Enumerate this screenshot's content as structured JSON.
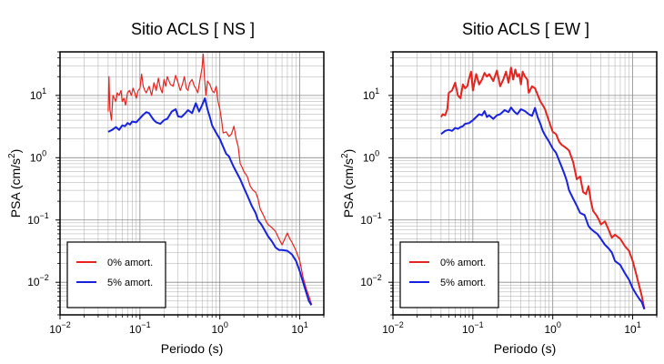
{
  "chart_data": [
    {
      "type": "line",
      "title": "Sitio ACLS [ NS ]",
      "xlabel": "Periodo (s)",
      "ylabel_main": "PSA (cm/s",
      "ylabel_sup": "2",
      "ylabel_end": ")",
      "xscale": "log",
      "yscale": "log",
      "xlim": [
        0.01,
        20
      ],
      "ylim": [
        0.003,
        50
      ],
      "grid": true,
      "legend_position": "bottom-left",
      "x_ticks": [
        {
          "base": "10",
          "exp": "−2",
          "value": 0.01
        },
        {
          "base": "10",
          "exp": "−1",
          "value": 0.1
        },
        {
          "base": "10",
          "exp": "0",
          "value": 1
        },
        {
          "base": "10",
          "exp": "1",
          "value": 10
        }
      ],
      "y_ticks": [
        {
          "base": "10",
          "exp": "−2",
          "value": 0.01
        },
        {
          "base": "10",
          "exp": "−1",
          "value": 0.1
        },
        {
          "base": "10",
          "exp": "0",
          "value": 1
        },
        {
          "base": "10",
          "exp": "1",
          "value": 10
        }
      ],
      "series": [
        {
          "name": "0% amort.",
          "color": "#e8231e",
          "width": 1.2,
          "x": [
            0.04,
            0.041,
            0.042,
            0.044,
            0.046,
            0.048,
            0.05,
            0.052,
            0.055,
            0.058,
            0.06,
            0.063,
            0.066,
            0.07,
            0.074,
            0.078,
            0.082,
            0.086,
            0.09,
            0.095,
            0.1,
            0.105,
            0.11,
            0.115,
            0.12,
            0.13,
            0.14,
            0.15,
            0.16,
            0.17,
            0.18,
            0.19,
            0.2,
            0.21,
            0.22,
            0.24,
            0.26,
            0.28,
            0.3,
            0.32,
            0.34,
            0.36,
            0.38,
            0.4,
            0.42,
            0.45,
            0.48,
            0.5,
            0.53,
            0.56,
            0.6,
            0.62,
            0.64,
            0.67,
            0.7,
            0.75,
            0.8,
            0.85,
            0.9,
            0.95,
            1.0,
            1.05,
            1.1,
            1.2,
            1.3,
            1.4,
            1.5,
            1.6,
            1.7,
            1.8,
            1.9,
            2.0,
            2.1,
            2.2,
            2.4,
            2.6,
            2.8,
            3.0,
            3.2,
            3.5,
            3.8,
            4.0,
            4.5,
            5.0,
            5.5,
            6.0,
            6.5,
            7.0,
            7.5,
            8.0,
            9.0,
            10,
            11,
            12,
            13,
            14
          ],
          "y": [
            5.5,
            20,
            6,
            4,
            10,
            9,
            8,
            11,
            10,
            12,
            8,
            9,
            7,
            11,
            12,
            10,
            13,
            11,
            9,
            12,
            13,
            22,
            14,
            12,
            11,
            14,
            10,
            16,
            12,
            19,
            13,
            11,
            18,
            14,
            20,
            15,
            14,
            21,
            16,
            12,
            15,
            20,
            13,
            12,
            16,
            18,
            14,
            13,
            11,
            17,
            28,
            46,
            20,
            10,
            17,
            15,
            12,
            11,
            14,
            8,
            6,
            4,
            2.5,
            2.6,
            2.2,
            2.4,
            3.2,
            2.0,
            1.5,
            0.8,
            0.7,
            0.6,
            0.55,
            0.5,
            0.35,
            0.3,
            0.28,
            0.22,
            0.15,
            0.12,
            0.095,
            0.085,
            0.075,
            0.065,
            0.05,
            0.04,
            0.05,
            0.062,
            0.05,
            0.044,
            0.032,
            0.022,
            0.012,
            0.008,
            0.006,
            0.0045
          ]
        },
        {
          "name": "5% amort.",
          "color": "#1722e0",
          "width": 2,
          "x": [
            0.04,
            0.045,
            0.05,
            0.055,
            0.06,
            0.065,
            0.07,
            0.075,
            0.08,
            0.09,
            0.1,
            0.11,
            0.12,
            0.13,
            0.14,
            0.15,
            0.16,
            0.18,
            0.2,
            0.22,
            0.25,
            0.28,
            0.3,
            0.33,
            0.36,
            0.4,
            0.45,
            0.5,
            0.55,
            0.6,
            0.65,
            0.7,
            0.75,
            0.8,
            0.9,
            1.0,
            1.1,
            1.2,
            1.3,
            1.4,
            1.5,
            1.6,
            1.8,
            2.0,
            2.2,
            2.5,
            2.8,
            3.0,
            3.3,
            3.6,
            4.0,
            4.5,
            5.0,
            5.5,
            6.0,
            7.0,
            8.0,
            9.0,
            10,
            11,
            12,
            13,
            14
          ],
          "y": [
            2.6,
            2.8,
            3.1,
            2.8,
            3.3,
            3.2,
            3.6,
            3.4,
            3.8,
            3.7,
            4.3,
            4.9,
            5.4,
            5.2,
            4.5,
            4.0,
            3.7,
            3.5,
            4.0,
            4.2,
            5.5,
            6.0,
            4.6,
            4.5,
            5.0,
            5.8,
            5.2,
            7.5,
            5.5,
            7.0,
            9.0,
            6.0,
            4.5,
            3.3,
            2.5,
            2.0,
            1.5,
            1.15,
            1.05,
            0.85,
            0.7,
            0.6,
            0.45,
            0.33,
            0.25,
            0.17,
            0.13,
            0.1,
            0.085,
            0.07,
            0.055,
            0.045,
            0.036,
            0.033,
            0.033,
            0.032,
            0.028,
            0.022,
            0.015,
            0.01,
            0.007,
            0.005,
            0.0043
          ]
        }
      ]
    },
    {
      "type": "line",
      "title": "Sitio ACLS [ EW ]",
      "xlabel": "Periodo (s)",
      "ylabel_main": "PSA (cm/s",
      "ylabel_sup": "2",
      "ylabel_end": ")",
      "xscale": "log",
      "yscale": "log",
      "xlim": [
        0.01,
        20
      ],
      "ylim": [
        0.003,
        50
      ],
      "grid": true,
      "legend_position": "bottom-left",
      "x_ticks": [
        {
          "base": "10",
          "exp": "−2",
          "value": 0.01
        },
        {
          "base": "10",
          "exp": "−1",
          "value": 0.1
        },
        {
          "base": "10",
          "exp": "0",
          "value": 1
        },
        {
          "base": "10",
          "exp": "1",
          "value": 10
        }
      ],
      "y_ticks": [
        {
          "base": "10",
          "exp": "−2",
          "value": 0.01
        },
        {
          "base": "10",
          "exp": "−1",
          "value": 0.1
        },
        {
          "base": "10",
          "exp": "0",
          "value": 1
        },
        {
          "base": "10",
          "exp": "1",
          "value": 10
        }
      ],
      "series": [
        {
          "name": "0% amort.",
          "color": "#e8231e",
          "width": 2,
          "x": [
            0.04,
            0.042,
            0.045,
            0.048,
            0.05,
            0.055,
            0.06,
            0.065,
            0.07,
            0.075,
            0.08,
            0.085,
            0.09,
            0.095,
            0.1,
            0.11,
            0.12,
            0.13,
            0.14,
            0.15,
            0.16,
            0.18,
            0.2,
            0.22,
            0.24,
            0.26,
            0.28,
            0.3,
            0.32,
            0.34,
            0.36,
            0.38,
            0.4,
            0.42,
            0.45,
            0.48,
            0.5,
            0.55,
            0.6,
            0.65,
            0.7,
            0.75,
            0.8,
            0.9,
            1.0,
            1.1,
            1.2,
            1.3,
            1.4,
            1.5,
            1.6,
            1.8,
            2.0,
            2.2,
            2.4,
            2.6,
            2.8,
            3.0,
            3.2,
            3.5,
            3.8,
            4.0,
            4.5,
            5.0,
            5.5,
            6.0,
            7.0,
            8.0,
            9.0,
            10,
            11,
            12,
            13,
            14
          ],
          "y": [
            4.5,
            5.0,
            4.8,
            6.0,
            11,
            12,
            16,
            10,
            9,
            15,
            13,
            14,
            19,
            24,
            12,
            22,
            15,
            18,
            23,
            20,
            22,
            17,
            25,
            14,
            18,
            24,
            16,
            28,
            18,
            26,
            20,
            22,
            15,
            24,
            20,
            18,
            11,
            14,
            13,
            10,
            8,
            7,
            6,
            3.8,
            2.6,
            2.4,
            1.8,
            1.6,
            1.5,
            1.4,
            1.3,
            0.85,
            0.45,
            0.5,
            0.28,
            0.26,
            0.35,
            0.2,
            0.14,
            0.12,
            0.1,
            0.085,
            0.095,
            0.07,
            0.052,
            0.058,
            0.05,
            0.038,
            0.032,
            0.022,
            0.014,
            0.009,
            0.006,
            0.0037
          ]
        },
        {
          "name": "5% amort.",
          "color": "#1722e0",
          "width": 2,
          "x": [
            0.04,
            0.045,
            0.05,
            0.055,
            0.06,
            0.065,
            0.07,
            0.075,
            0.08,
            0.09,
            0.1,
            0.11,
            0.12,
            0.13,
            0.14,
            0.15,
            0.16,
            0.18,
            0.2,
            0.22,
            0.25,
            0.28,
            0.3,
            0.33,
            0.36,
            0.4,
            0.45,
            0.5,
            0.55,
            0.6,
            0.65,
            0.7,
            0.75,
            0.8,
            0.9,
            1.0,
            1.1,
            1.2,
            1.3,
            1.4,
            1.5,
            1.6,
            1.8,
            2.0,
            2.2,
            2.5,
            2.8,
            3.0,
            3.3,
            3.6,
            4.0,
            4.5,
            5.0,
            5.5,
            6.0,
            7.0,
            8.0,
            9.0,
            10,
            11,
            12,
            13,
            14
          ],
          "y": [
            2.4,
            2.7,
            2.8,
            2.7,
            3.0,
            2.9,
            3.1,
            3.2,
            3.5,
            3.6,
            4.0,
            4.5,
            5.0,
            4.8,
            5.6,
            4.5,
            4.8,
            4.2,
            4.8,
            5.0,
            5.8,
            5.4,
            6.4,
            5.5,
            5.0,
            6.0,
            5.6,
            5.0,
            4.7,
            6.3,
            4.4,
            3.5,
            2.7,
            2.3,
            1.8,
            1.4,
            1.2,
            0.9,
            0.7,
            0.55,
            0.42,
            0.3,
            0.22,
            0.17,
            0.13,
            0.12,
            0.08,
            0.072,
            0.065,
            0.06,
            0.05,
            0.04,
            0.035,
            0.03,
            0.022,
            0.019,
            0.014,
            0.011,
            0.008,
            0.0065,
            0.0055,
            0.0048,
            0.0037
          ]
        }
      ]
    }
  ]
}
